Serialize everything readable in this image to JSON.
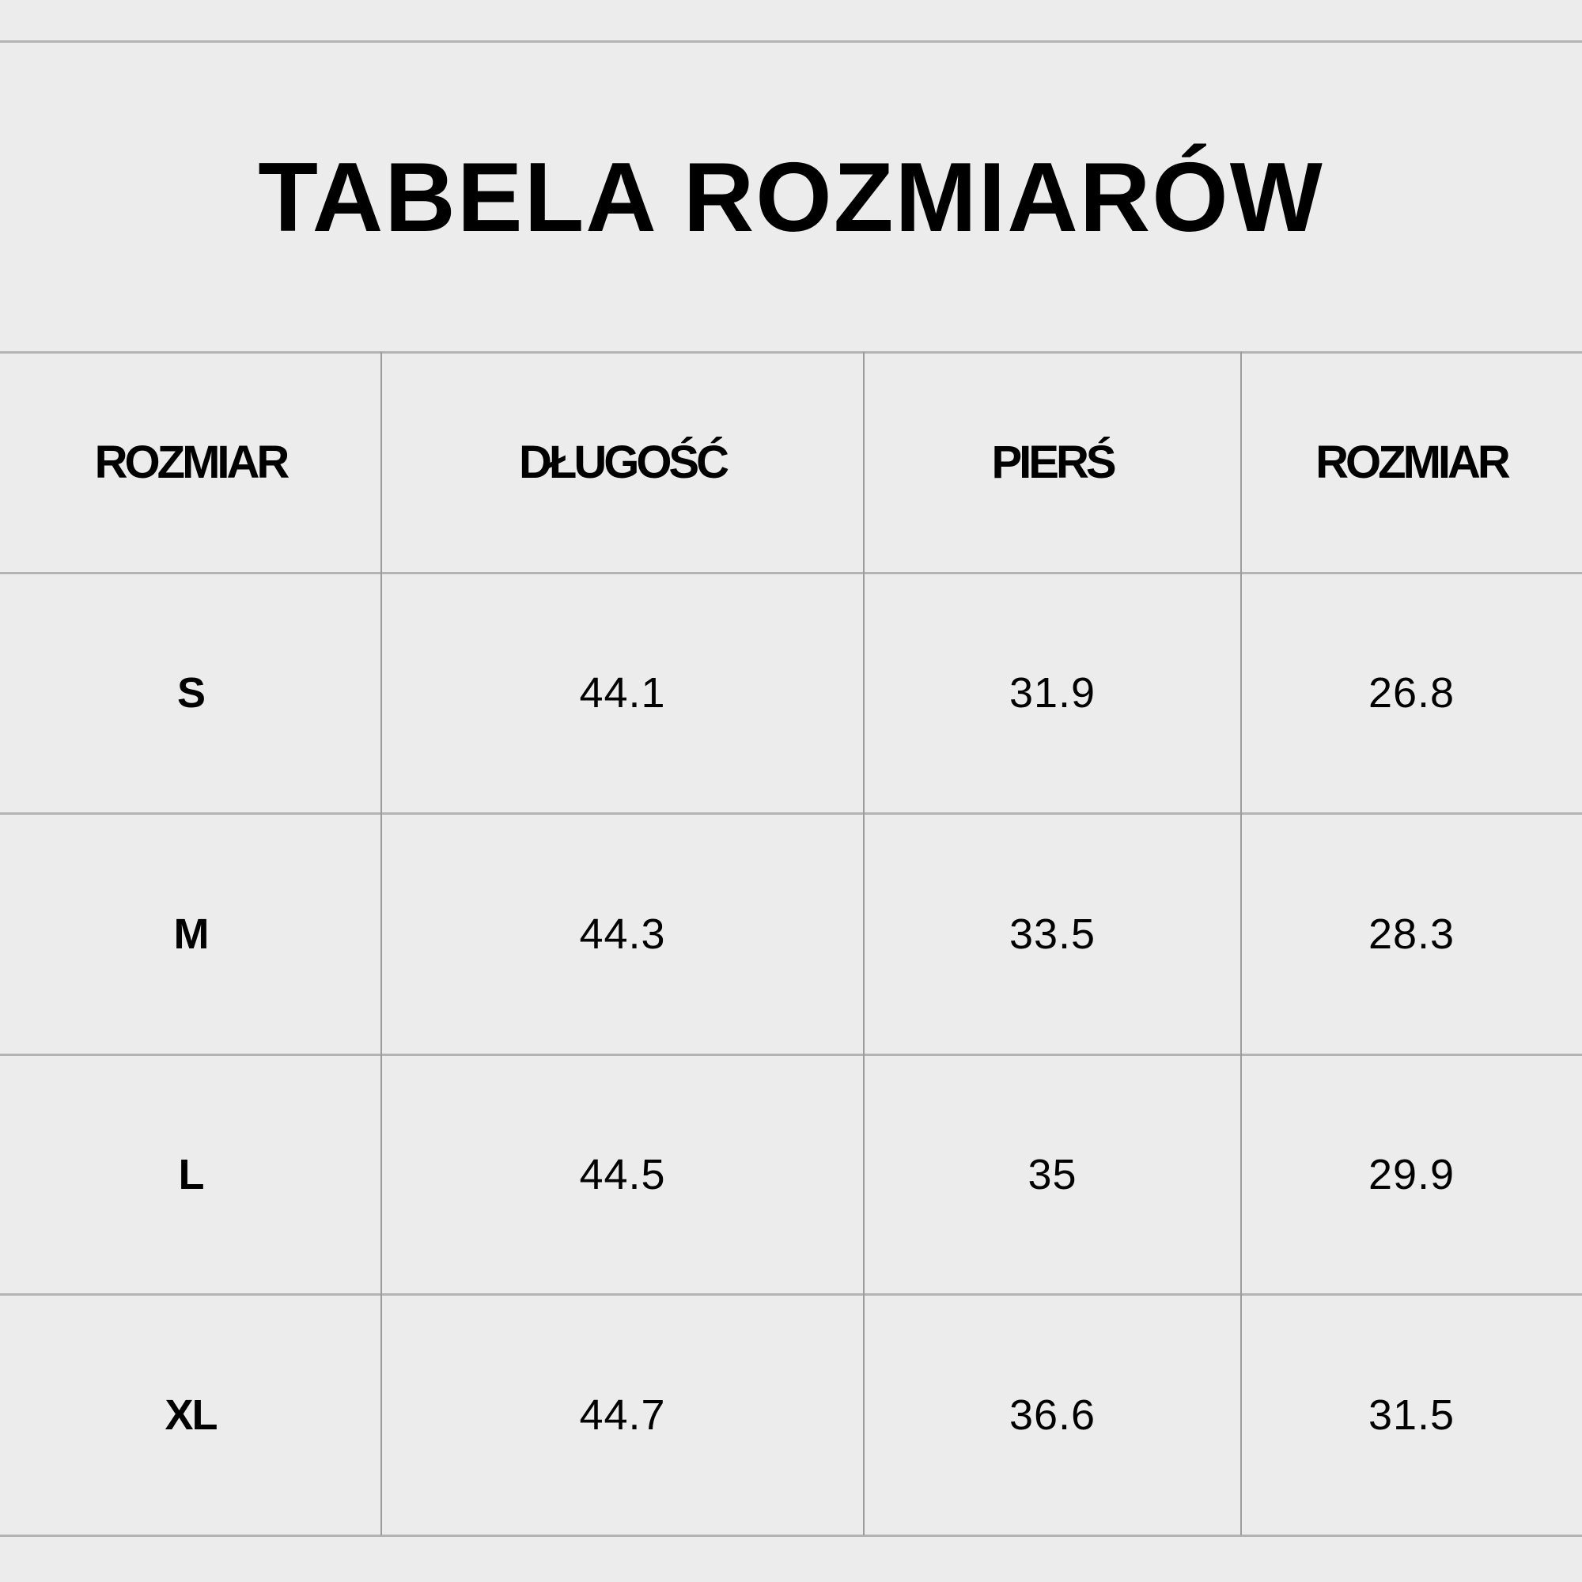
{
  "title": "TABELA ROZMIARÓW",
  "table": {
    "headers": [
      "ROZMIAR",
      "DŁUGOŚĆ",
      "PIERŚ",
      "ROZMIAR"
    ],
    "rows": [
      [
        "S",
        "44.1",
        "31.9",
        "26.8"
      ],
      [
        "M",
        "44.3",
        "33.5",
        "28.3"
      ],
      [
        "L",
        "44.5",
        "35",
        "29.9"
      ],
      [
        "XL",
        "44.7",
        "36.6",
        "31.5"
      ]
    ]
  },
  "colors": {
    "background": "#ececec",
    "grid": "#b3b3b3",
    "text": "#000000"
  }
}
